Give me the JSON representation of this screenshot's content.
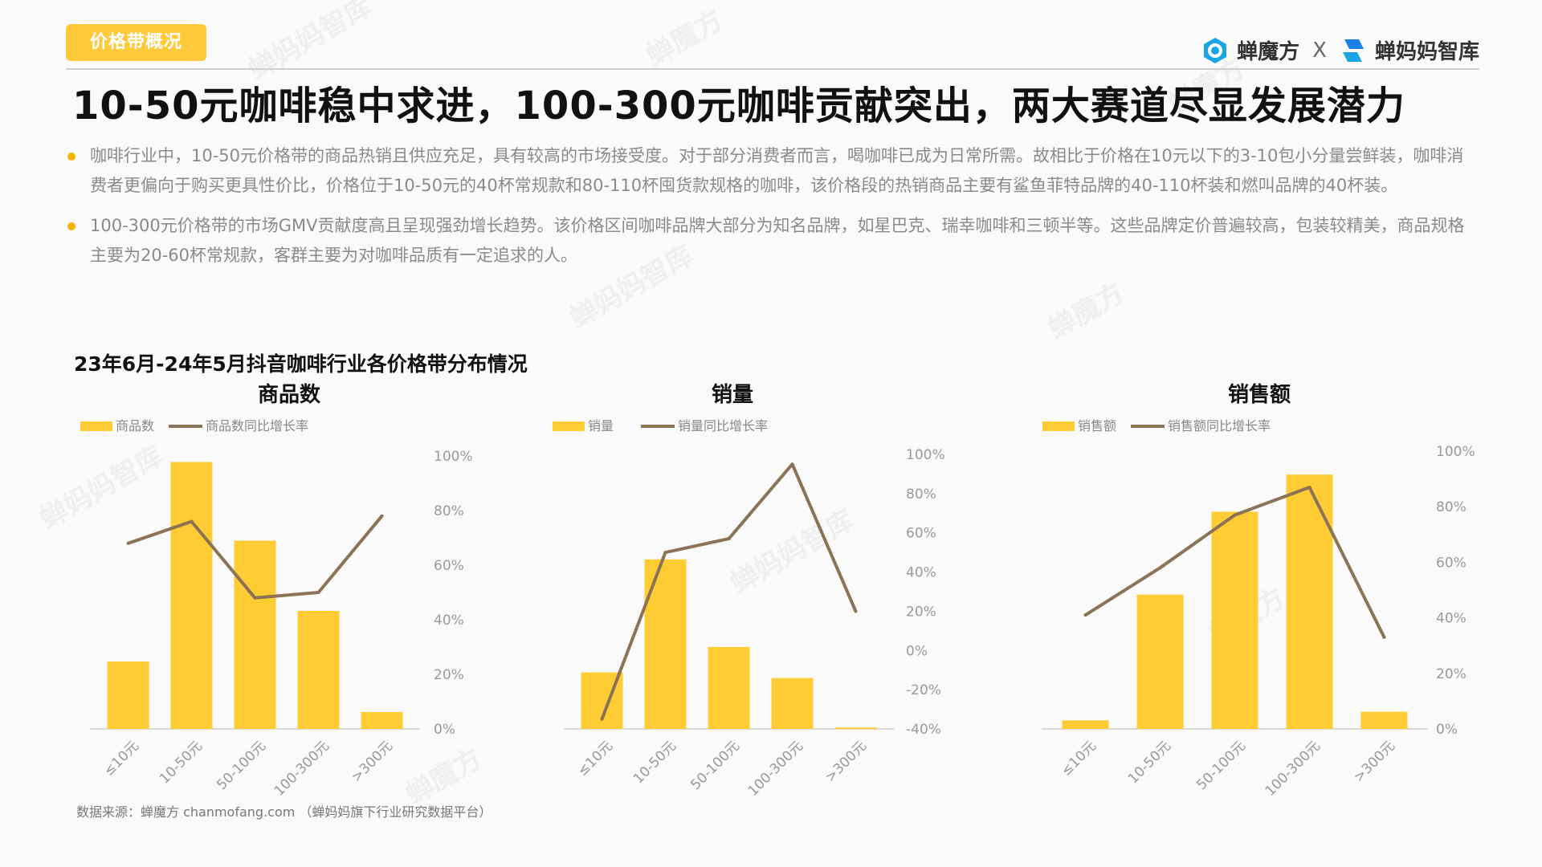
{
  "header": {
    "tag": "价格带概况",
    "title": "10-50元咖啡稳中求进，100-300元咖啡贡献突出，两大赛道尽显发展潜力",
    "logo1": "蝉魔方",
    "separator": "X",
    "logo2": "蝉妈妈智库"
  },
  "bullets": [
    "咖啡行业中，10-50元价格带的商品热销且供应充足，具有较高的市场接受度。对于部分消费者而言，喝咖啡已成为日常所需。故相比于价格在10元以下的3-10包小分量尝鲜装，咖啡消费者更偏向于购买更具性价比，价格位于10-50元的40杯常规款和80-110杯囤货款规格的咖啡，该价格段的热销商品主要有鲨鱼菲特品牌的40-110杯装和燃叫品牌的40杯装。",
    "100-300元价格带的市场GMV贡献度高且呈现强劲增长趋势。该价格区间咖啡品牌大部分为知名品牌，如星巴克、瑞幸咖啡和三顿半等。这些品牌定价普遍较高，包装较精美，商品规格主要为20-60杯常规款，客群主要为对咖啡品质有一定追求的人。"
  ],
  "subtitle": "23年6月-24年5月抖音咖啡行业各价格带分布情况",
  "source": "数据来源：蝉魔方 chanmofang.com （蝉妈妈旗下行业研究数据平台）",
  "colors": {
    "bar": "#ffcc33",
    "line": "#8c7355",
    "accent": "#ffc93a"
  },
  "chart_data": [
    {
      "type": "bar",
      "title": "商品数",
      "categories": [
        "≤10元",
        "10-50元",
        "50-100元",
        "100-300元",
        ">300元"
      ],
      "series": [
        {
          "name": "商品数",
          "type": "bar",
          "values": [
            24,
            95,
            67,
            42,
            6
          ]
        },
        {
          "name": "商品数同比增长率",
          "type": "line",
          "axis": "right",
          "values": [
            68,
            76,
            48,
            50,
            78
          ]
        }
      ],
      "y2_ticks": [
        "100%",
        "80%",
        "60%",
        "40%",
        "20%",
        "0%"
      ],
      "y2lim": [
        0,
        100
      ],
      "legend": "top-left"
    },
    {
      "type": "bar",
      "title": "销量",
      "categories": [
        "≤10元",
        "10-50元",
        "50-100元",
        "100-300元",
        ">300元"
      ],
      "series": [
        {
          "name": "销量",
          "type": "bar",
          "values": [
            20,
            60,
            29,
            18,
            0.5
          ]
        },
        {
          "name": "销量同比增长率",
          "type": "line",
          "axis": "right",
          "values": [
            -35,
            50,
            57,
            95,
            20
          ]
        }
      ],
      "y2_ticks": [
        "100%",
        "80%",
        "60%",
        "40%",
        "20%",
        "0%",
        "-20%",
        "-40%"
      ],
      "y2lim": [
        -40,
        100
      ],
      "legend": "top-left"
    },
    {
      "type": "bar",
      "title": "销售额",
      "categories": [
        "≤10元",
        "10-50元",
        "50-100元",
        "100-300元",
        ">300元"
      ],
      "series": [
        {
          "name": "销售额",
          "type": "bar",
          "values": [
            3,
            47,
            76,
            89,
            6
          ]
        },
        {
          "name": "销售额同比增长率",
          "type": "line",
          "axis": "right",
          "values": [
            41,
            58,
            77,
            87,
            33
          ]
        }
      ],
      "y2_ticks": [
        "100%",
        "80%",
        "60%",
        "40%",
        "20%",
        "0%"
      ],
      "y2lim": [
        0,
        100
      ],
      "legend": "top-left"
    }
  ]
}
